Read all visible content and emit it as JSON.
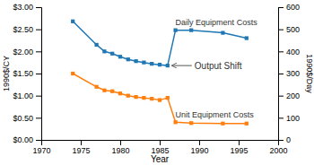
{
  "chart_data": {
    "type": "line",
    "x": [
      1974,
      1977,
      1978,
      1979,
      1980,
      1981,
      1982,
      1983,
      1984,
      1985,
      1986,
      1987,
      1989,
      1993,
      1996
    ],
    "series": [
      {
        "values": [
          2.68,
          2.15,
          2.0,
          1.95,
          1.88,
          1.82,
          1.78,
          1.75,
          1.72,
          1.7,
          1.68,
          2.48,
          2.48,
          2.42,
          2.3
        ]
      },
      {
        "values": [
          1.5,
          1.2,
          1.12,
          1.1,
          1.05,
          1.0,
          0.97,
          0.95,
          0.93,
          0.9,
          0.95,
          0.4,
          0.38,
          0.37,
          0.37
        ]
      }
    ],
    "x_label": "Year",
    "y_label": "1990$/CY",
    "y2_label": "1990$/Day",
    "xlim": [
      1970,
      2000
    ],
    "xticks": [
      1970,
      1975,
      1980,
      1985,
      1990,
      1995,
      2000
    ],
    "ylim": [
      0.0,
      3.0
    ],
    "yticks": [
      {
        "value": 0.0,
        "label": "$0.00"
      },
      {
        "value": 0.5,
        "label": "$0.50"
      },
      {
        "value": 1.0,
        "label": "$1.00"
      },
      {
        "value": 1.5,
        "label": "$1.50"
      },
      {
        "value": 2.0,
        "label": "$2.00"
      },
      {
        "value": 2.5,
        "label": "$2.50"
      },
      {
        "value": 3.0,
        "label": "$3.00"
      }
    ],
    "y2lim": [
      0,
      600
    ],
    "y2ticks": [
      0,
      100,
      200,
      300,
      400,
      500,
      600
    ],
    "annotations": [
      "Daily Equipment Costs",
      "Unit Equipment Costs",
      "Output Shift"
    ],
    "marker": "square",
    "grid": false
  }
}
